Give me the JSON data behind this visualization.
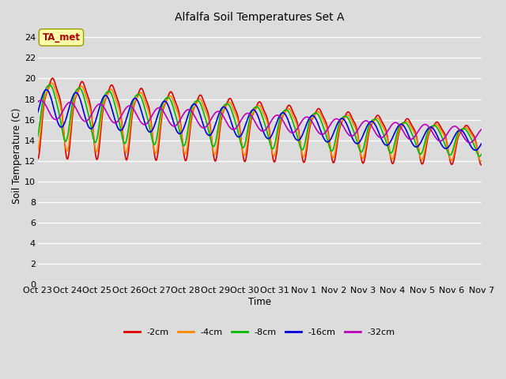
{
  "title": "Alfalfa Soil Temperatures Set A",
  "xlabel": "Time",
  "ylabel": "Soil Temperature (C)",
  "background_color": "#dcdcdc",
  "plot_bg_color": "#dcdcdc",
  "ylim": [
    0,
    25
  ],
  "yticks": [
    0,
    2,
    4,
    6,
    8,
    10,
    12,
    14,
    16,
    18,
    20,
    22,
    24
  ],
  "xtick_labels": [
    "Oct 23",
    "Oct 24",
    "Oct 25",
    "Oct 26",
    "Oct 27",
    "Oct 28",
    "Oct 29",
    "Oct 30",
    "Oct 31",
    "Nov 1",
    "Nov 2",
    "Nov 3",
    "Nov 4",
    "Nov 5",
    "Nov 6",
    "Nov 7"
  ],
  "legend_label": "TA_met",
  "series_labels": [
    "-2cm",
    "-4cm",
    "-8cm",
    "-16cm",
    "-32cm"
  ],
  "series_colors": [
    "#dd0000",
    "#ff8800",
    "#00bb00",
    "#0000dd",
    "#bb00bb"
  ],
  "annotation_box_facecolor": "#ffffaa",
  "annotation_box_edgecolor": "#999900",
  "annotation_text_color": "#aa0000",
  "line_width": 1.2,
  "grid_color": "#ffffff",
  "grid_lw": 1.0
}
